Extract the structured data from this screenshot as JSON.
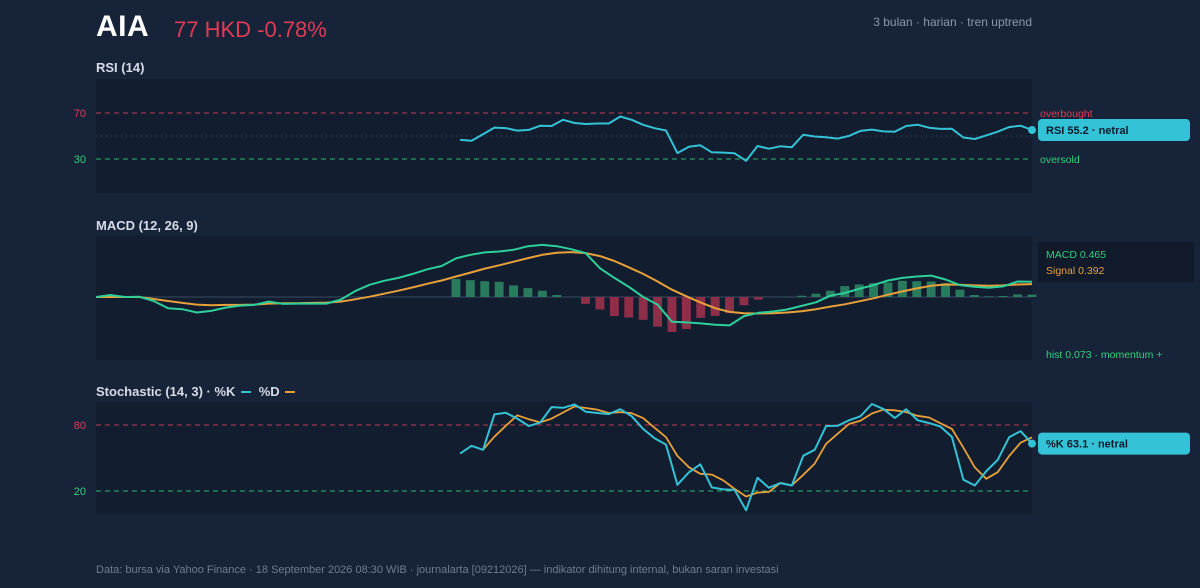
{
  "header": {
    "ticker": "AIA",
    "price_text": "77 HKD -0.78%",
    "meta": "3 bulan · harian · tren uptrend"
  },
  "footer": "Data: bursa via Yahoo Finance · 18 September 2026 08:30 WIB · journalarta [09212026] — indikator dihitung internal, bukan saran investasi",
  "colors": {
    "background": "#172339",
    "panel": "#121d2f",
    "cyan": "#34c3d6",
    "orange": "#e8a13a",
    "green": "#33d17a",
    "red": "#e23b55",
    "hist_pos": "#2a7a5e",
    "hist_neg": "#8f2e49"
  },
  "chart_data": [
    {
      "type": "line",
      "title": "RSI (14)",
      "ylim": [
        0,
        100
      ],
      "yticks": [
        "70",
        "30"
      ],
      "levels": [
        {
          "value": 70,
          "label": "overbought"
        },
        {
          "value": 30,
          "label": "oversold"
        }
      ],
      "midline": 50,
      "pill_label": "RSI 55.2 · netral",
      "series": [
        {
          "values": [
            null,
            null,
            null,
            null,
            null,
            null,
            null,
            null,
            null,
            null,
            null,
            null,
            null,
            null,
            46.6,
            45.8,
            51.5,
            57.3,
            56.9,
            54.7,
            55.3,
            59.0,
            58.7,
            64.1,
            61.3,
            60.4,
            60.9,
            60.9,
            67.0,
            64.1,
            59.7,
            56.8,
            54.8,
            35.1,
            40.7,
            41.9,
            35.8,
            35.6,
            35.0,
            28.4,
            41.3,
            39.0,
            41.0,
            40.3,
            51.1,
            49.6,
            48.9,
            47.7,
            50.1,
            54.4,
            55.6,
            54.0,
            53.7,
            58.7,
            59.8,
            57.2,
            56.2,
            56.3,
            48.7,
            47.4,
            50.5,
            53.7,
            57.7,
            59.0,
            55.2
          ]
        }
      ]
    },
    {
      "type": "line",
      "title": "MACD (12, 26, 9)",
      "legend": {
        "macd": "MACD 0.465",
        "signal": "Signal 0.392"
      },
      "note": "hist 0.073 · momentum +",
      "series": [
        {
          "name": "MACD",
          "values": [
            0,
            0.06,
            0,
            0.01,
            -0.12,
            -0.34,
            -0.37,
            -0.47,
            -0.42,
            -0.32,
            -0.26,
            -0.24,
            -0.14,
            -0.21,
            -0.2,
            -0.2,
            -0.2,
            -0.08,
            0.18,
            0.37,
            0.49,
            0.58,
            0.7,
            0.84,
            0.94,
            1.17,
            1.28,
            1.35,
            1.38,
            1.43,
            1.54,
            1.58,
            1.54,
            1.45,
            1.33,
            0.87,
            0.58,
            0.31,
            0.0,
            -0.23,
            -0.75,
            -0.77,
            -0.8,
            -0.84,
            -0.86,
            -0.58,
            -0.48,
            -0.44,
            -0.38,
            -0.27,
            -0.16,
            0.04,
            0.12,
            0.25,
            0.36,
            0.5,
            0.58,
            0.62,
            0.65,
            0.53,
            0.36,
            0.31,
            0.28,
            0.32,
            0.47,
            0.465
          ]
        },
        {
          "name": "Signal",
          "values": [
            0,
            0,
            0,
            0,
            -0.06,
            -0.12,
            -0.18,
            -0.23,
            -0.25,
            -0.24,
            -0.24,
            -0.23,
            -0.2,
            -0.19,
            -0.19,
            -0.18,
            -0.17,
            -0.14,
            -0.07,
            0.01,
            0.1,
            0.19,
            0.29,
            0.4,
            0.5,
            0.62,
            0.74,
            0.86,
            0.96,
            1.07,
            1.18,
            1.28,
            1.34,
            1.36,
            1.33,
            1.24,
            1.09,
            0.9,
            0.7,
            0.47,
            0.22,
            0.02,
            -0.17,
            -0.34,
            -0.45,
            -0.49,
            -0.5,
            -0.49,
            -0.47,
            -0.43,
            -0.37,
            -0.29,
            -0.22,
            -0.13,
            -0.04,
            0.07,
            0.17,
            0.26,
            0.34,
            0.38,
            0.37,
            0.35,
            0.34,
            0.35,
            0.38,
            0.392
          ]
        }
      ],
      "histogram": [
        0,
        0,
        0,
        0,
        0,
        0,
        0,
        0,
        0,
        0,
        0,
        0,
        0,
        0,
        0,
        0,
        0,
        0,
        0,
        0,
        0,
        0,
        0,
        0,
        0,
        0.55,
        0.51,
        0.48,
        0.46,
        0.35,
        0.27,
        0.19,
        0.06,
        0,
        -0.21,
        -0.38,
        -0.58,
        -0.62,
        -0.69,
        -0.9,
        -1.06,
        -0.97,
        -0.63,
        -0.57,
        -0.49,
        -0.25,
        -0.08,
        0,
        0.01,
        0.04,
        0.1,
        0.19,
        0.33,
        0.38,
        0.42,
        0.44,
        0.49,
        0.48,
        0.47,
        0.42,
        0.22,
        0.06,
        0.02,
        0.03,
        0.08,
        0.073
      ]
    },
    {
      "type": "line",
      "title": "Stochastic (14, 3) · %K",
      "title_d": "%D",
      "ylim": [
        0,
        100
      ],
      "yticks": [
        "80",
        "20"
      ],
      "levels": [
        {
          "value": 80
        },
        {
          "value": 20
        }
      ],
      "pill_label": "%K 63.1 · netral",
      "series": [
        {
          "name": "%K",
          "values": [
            null,
            null,
            null,
            null,
            null,
            null,
            null,
            null,
            null,
            null,
            null,
            null,
            null,
            null,
            54.0,
            61.1,
            57.5,
            89.6,
            91.1,
            85.8,
            79.0,
            82.2,
            96.3,
            95.6,
            98.7,
            92.0,
            90.9,
            89.9,
            94.4,
            88.0,
            76.5,
            67.9,
            62.2,
            25.6,
            37.0,
            44.3,
            23.3,
            21.5,
            21.0,
            2.5,
            32.0,
            23.0,
            27.2,
            25.0,
            52.1,
            57.5,
            79.1,
            79.3,
            84.3,
            87.9,
            99.1,
            94.6,
            86.4,
            94.3,
            84.4,
            81.7,
            78.5,
            69.2,
            30.3,
            25.0,
            38.1,
            48.3,
            68.8,
            74.5,
            63.1
          ]
        },
        {
          "name": "%D",
          "values": [
            null,
            null,
            null,
            null,
            null,
            null,
            null,
            null,
            null,
            null,
            null,
            null,
            null,
            null,
            null,
            null,
            null,
            null,
            null,
            null,
            null,
            null,
            null,
            null,
            null,
            null,
            null,
            null,
            null,
            null,
            null,
            null,
            null,
            null,
            null,
            null,
            null,
            null,
            null,
            null,
            null,
            null,
            null,
            null,
            null,
            null,
            null,
            null,
            null,
            null,
            null,
            null,
            null,
            null,
            null,
            null,
            null,
            null,
            null,
            null,
            null,
            null,
            null,
            null,
            null
          ]
        }
      ]
    }
  ]
}
